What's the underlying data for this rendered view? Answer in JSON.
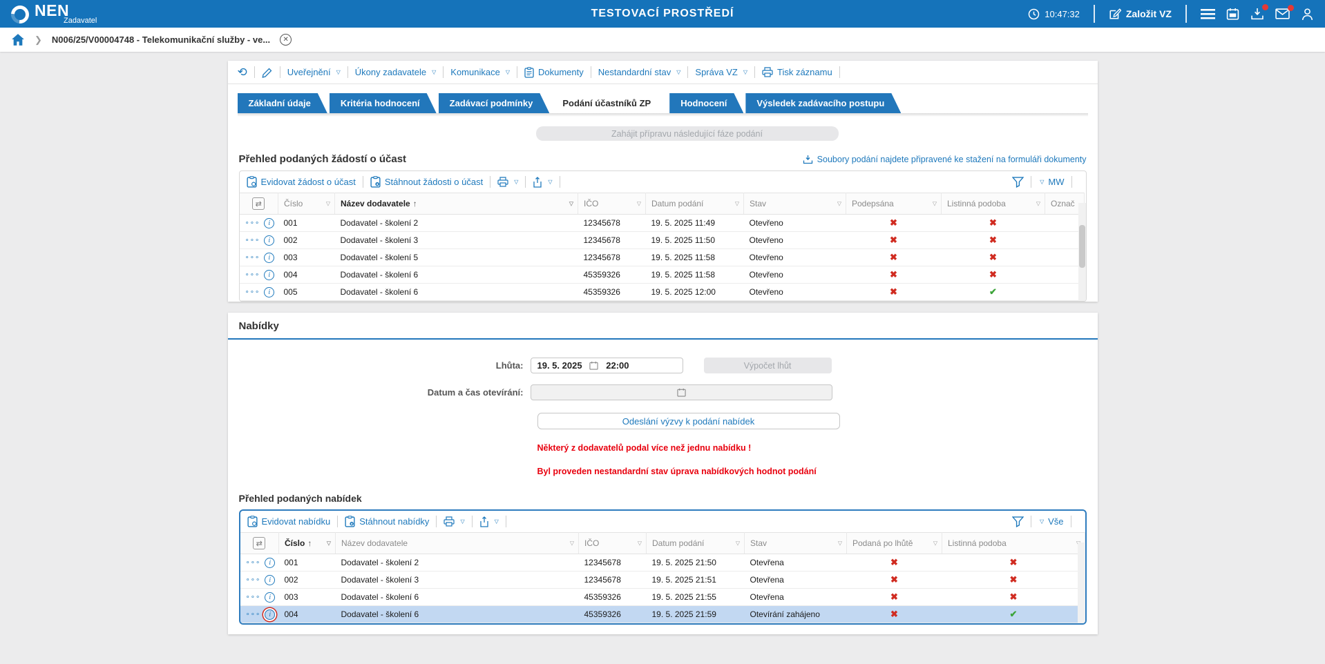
{
  "icons": {
    "caret": "▽",
    "sort_asc": "↑",
    "dots": "∘∘∘",
    "info": "i",
    "check": "✔",
    "cross": "✖",
    "refresh": "⟲",
    "colcfg": "⇄",
    "chevron": "❯",
    "close": "✕"
  },
  "colors": {
    "accent": "#1573BA",
    "tab_blue": "#2277BB",
    "link_blue": "#1E79BC",
    "warning_red": "#E8000E",
    "mark_red": "#D02B20",
    "mark_green": "#3CA439",
    "selected_row": "#C2D8F2"
  },
  "header": {
    "brand": "NEN",
    "brand_sub": "Zadavatel",
    "env_title": "TESTOVACÍ PROSTŘEDÍ",
    "clock": "10:47:32",
    "create_vz": "Založit VZ"
  },
  "breadcrumb": {
    "record": "N006/25/V00004748 - Telekomunikační služby - ve..."
  },
  "record_toolbar": {
    "items": [
      {
        "label": "Uveřejnění"
      },
      {
        "label": "Úkony zadavatele"
      },
      {
        "label": "Komunikace"
      },
      {
        "label": "Dokumenty"
      },
      {
        "label": "Nestandardní stav"
      },
      {
        "label": "Správa VZ"
      },
      {
        "label": "Tisk záznamu"
      }
    ]
  },
  "tabs": [
    {
      "label": "Základní údaje",
      "active": false
    },
    {
      "label": "Kritéria hodnocení",
      "active": false
    },
    {
      "label": "Zadávací podmínky",
      "active": false
    },
    {
      "label": "Podání účastníků ZP",
      "active": true
    },
    {
      "label": "Hodnocení",
      "active": false
    },
    {
      "label": "Výsledek zadávacího postupu",
      "active": false
    }
  ],
  "phase_button": "Zahájit přípravu následující fáze podání",
  "applications": {
    "title": "Přehled podaných žádostí o účast",
    "download_hint": "Soubory podání najdete připravené ke stažení na formuláři dokumenty",
    "action1": "Evidovat žádost o účast",
    "action2": "Stáhnout žádosti o účast",
    "view_label": "MW",
    "columns": {
      "cislo": "Číslo",
      "nazev": "Název dodavatele",
      "ico": "IČO",
      "datum": "Datum podání",
      "stav": "Stav",
      "bool1": "Podepsána",
      "bool2": "Listinná podoba",
      "extra": "Označ"
    },
    "rows": [
      {
        "cislo": "001",
        "nazev": "Dodavatel - školení 2",
        "ico": "12345678",
        "datum": "19. 5. 2025 11:49",
        "stav": "Otevřeno",
        "bool1": false,
        "bool2": false
      },
      {
        "cislo": "002",
        "nazev": "Dodavatel - školení 3",
        "ico": "12345678",
        "datum": "19. 5. 2025 11:50",
        "stav": "Otevřeno",
        "bool1": false,
        "bool2": false
      },
      {
        "cislo": "003",
        "nazev": "Dodavatel - školení 5",
        "ico": "12345678",
        "datum": "19. 5. 2025 11:58",
        "stav": "Otevřeno",
        "bool1": false,
        "bool2": false
      },
      {
        "cislo": "004",
        "nazev": "Dodavatel - školení 6",
        "ico": "45359326",
        "datum": "19. 5. 2025 11:58",
        "stav": "Otevřeno",
        "bool1": false,
        "bool2": false
      },
      {
        "cislo": "005",
        "nazev": "Dodavatel - školení 6",
        "ico": "45359326",
        "datum": "19. 5. 2025 12:00",
        "stav": "Otevřeno",
        "bool1": false,
        "bool2": true
      }
    ]
  },
  "offers_panel": {
    "title": "Nabídky",
    "deadline_label": "Lhůta:",
    "deadline_date": "19. 5. 2025",
    "deadline_time": "22:00",
    "compute_button": "Výpočet lhůt",
    "opening_label": "Datum a čas otevírání:",
    "opening_value": "",
    "send_button": "Odeslání výzvy k podání nabídek",
    "warning1": "Některý z dodavatelů podal více než jednu nabídku !",
    "warning2": "Byl proveden nestandardní stav úprava nabídkových hodnot podání"
  },
  "offers": {
    "title": "Přehled podaných nabídek",
    "action1": "Evidovat nabídku",
    "action2": "Stáhnout nabídky",
    "view_label": "Vše",
    "columns": {
      "cislo": "Číslo",
      "nazev": "Název dodavatele",
      "ico": "IČO",
      "datum": "Datum podání",
      "stav": "Stav",
      "bool1": "Podaná po lhůtě",
      "bool2": "Listinná podoba"
    },
    "rows": [
      {
        "cislo": "001",
        "nazev": "Dodavatel - školení 2",
        "ico": "12345678",
        "datum": "19. 5. 2025 21:50",
        "stav": "Otevřena",
        "bool1": false,
        "bool2": false
      },
      {
        "cislo": "002",
        "nazev": "Dodavatel - školení 3",
        "ico": "12345678",
        "datum": "19. 5. 2025 21:51",
        "stav": "Otevřena",
        "bool1": false,
        "bool2": false
      },
      {
        "cislo": "003",
        "nazev": "Dodavatel - školení 6",
        "ico": "45359326",
        "datum": "19. 5. 2025 21:55",
        "stav": "Otevřena",
        "bool1": false,
        "bool2": false
      },
      {
        "cislo": "004",
        "nazev": "Dodavatel - školení 6",
        "ico": "45359326",
        "datum": "19. 5. 2025 21:59",
        "stav": "Otevírání zahájeno",
        "bool1": false,
        "bool2": true,
        "selected": true,
        "flagged": true
      }
    ]
  }
}
